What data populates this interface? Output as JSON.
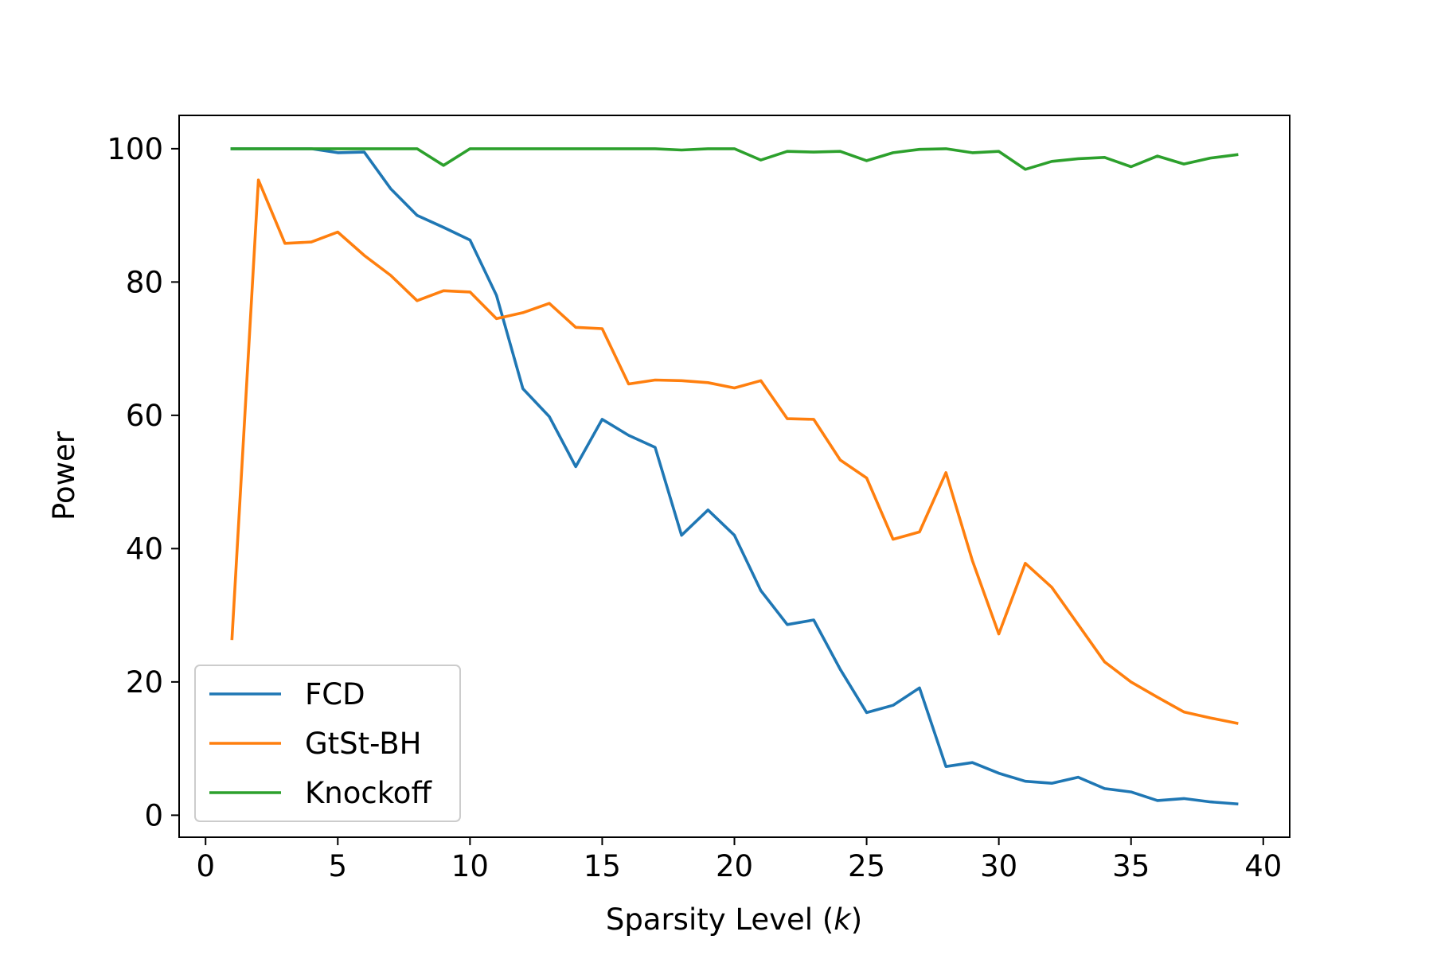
{
  "chart_data": {
    "type": "line",
    "title": "",
    "xlabel": "Sparsity Level (",
    "xlabel_var": "k",
    "xlabel_suffix": ")",
    "ylabel": "Power",
    "xlim": [
      -1,
      41
    ],
    "ylim": [
      -3.3,
      105
    ],
    "xticks": [
      0,
      5,
      10,
      15,
      20,
      25,
      30,
      35,
      40
    ],
    "yticks": [
      0,
      20,
      40,
      60,
      80,
      100
    ],
    "grid": false,
    "legend_position": "lower-left",
    "x": [
      1,
      2,
      3,
      4,
      5,
      6,
      7,
      8,
      9,
      10,
      11,
      12,
      13,
      14,
      15,
      16,
      17,
      18,
      19,
      20,
      21,
      22,
      23,
      24,
      25,
      26,
      27,
      28,
      29,
      30,
      31,
      32,
      33,
      34,
      35,
      36,
      37,
      38,
      39
    ],
    "series": [
      {
        "name": "FCD",
        "color": "#1f77b4",
        "values": [
          100,
          100,
          100,
          100,
          99.4,
          99.5,
          94,
          90,
          88.2,
          86.3,
          78,
          64,
          59.8,
          52.3,
          59.4,
          57,
          55.2,
          42,
          45.8,
          42,
          33.7,
          28.6,
          29.3,
          21.9,
          15.4,
          16.5,
          19.1,
          7.3,
          7.9,
          6.3,
          5.1,
          4.8,
          5.7,
          4,
          3.5,
          2.2,
          2.5,
          2,
          1.7
        ]
      },
      {
        "name": "GtSt-BH",
        "color": "#ff7f0e",
        "values": [
          26.5,
          95.3,
          85.8,
          86,
          87.5,
          84,
          81,
          77.2,
          78.7,
          78.5,
          74.5,
          75.4,
          76.8,
          73.2,
          73,
          64.7,
          65.3,
          65.2,
          64.9,
          64.1,
          65.2,
          59.5,
          59.4,
          53.3,
          50.6,
          41.4,
          42.5,
          51.4,
          38.2,
          27.2,
          37.8,
          34.2,
          28.6,
          23,
          20,
          17.7,
          15.5,
          14.6,
          13.8
        ]
      },
      {
        "name": "Knockoff",
        "color": "#2ca02c",
        "values": [
          100,
          100,
          100,
          100,
          100,
          100,
          100,
          100,
          97.5,
          100,
          100,
          100,
          100,
          100,
          100,
          100,
          100,
          99.8,
          100,
          100,
          98.3,
          99.6,
          99.5,
          99.6,
          98.2,
          99.4,
          99.9,
          100,
          99.4,
          99.6,
          96.9,
          98.1,
          98.5,
          98.7,
          97.3,
          98.9,
          97.7,
          98.6,
          99.1
        ]
      }
    ]
  }
}
